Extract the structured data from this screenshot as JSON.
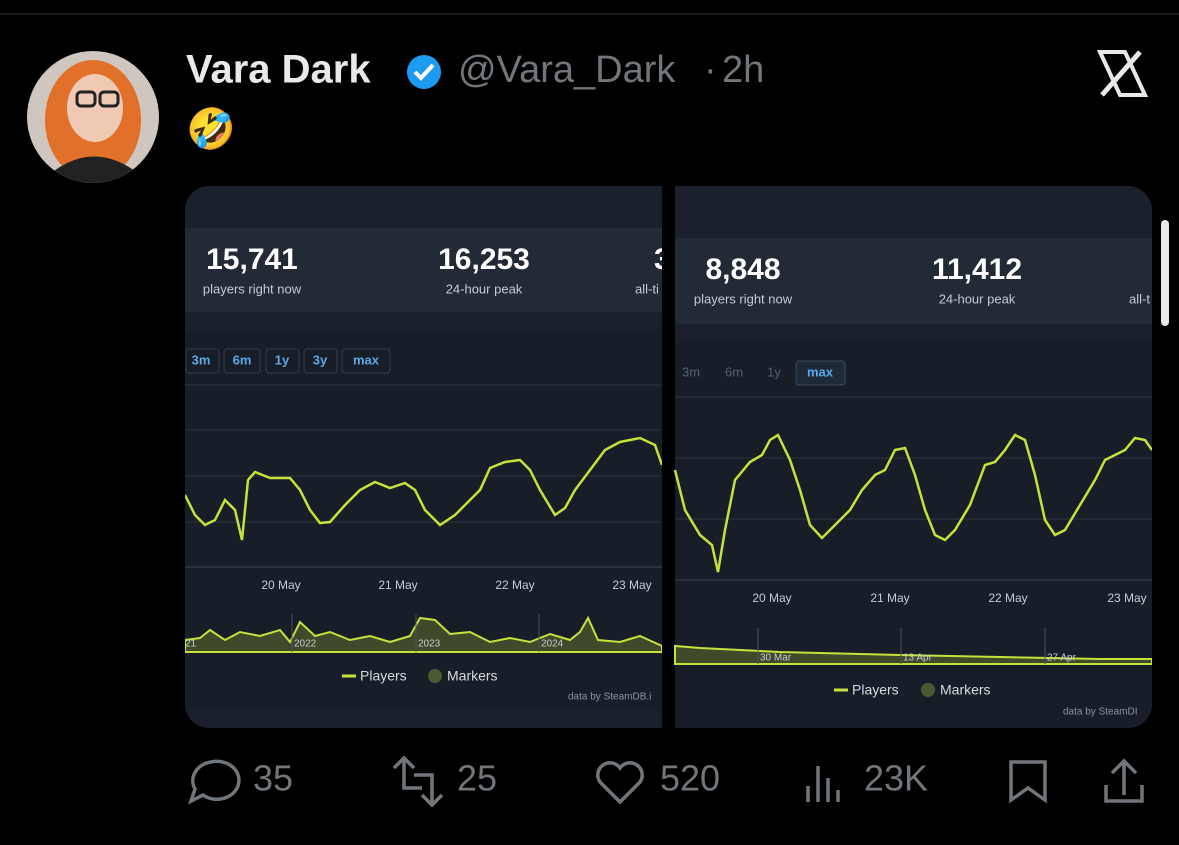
{
  "tweet": {
    "name": "Vara Dark",
    "handle": "@Vara_Dark",
    "separator": "·",
    "time": "2h",
    "text": "🤣"
  },
  "media": {
    "left": {
      "stats": [
        {
          "value": "15,741",
          "label": "players right now"
        },
        {
          "value": "16,253",
          "label": "24-hour peak"
        },
        {
          "value": "3",
          "label": "all-ti"
        }
      ],
      "ranges": [
        "3m",
        "6m",
        "1y",
        "3y",
        "max"
      ],
      "dates": [
        "20 May",
        "21 May",
        "22 May",
        "23 May"
      ],
      "navigator": [
        "21",
        "2022",
        "2023",
        "2024"
      ],
      "legend": [
        "Players",
        "Markers"
      ],
      "credit": "data by SteamDB.i"
    },
    "right": {
      "stats": [
        {
          "value": "8,848",
          "label": "players right now"
        },
        {
          "value": "11,412",
          "label": "24-hour peak"
        },
        {
          "label": "all-t"
        }
      ],
      "ranges": [
        "3m",
        "6m",
        "1y",
        "max"
      ],
      "dates": [
        "20 May",
        "21 May",
        "22 May",
        "23 May"
      ],
      "navigator": [
        "30 Mar",
        "13 Apr",
        "27 Apr"
      ],
      "legend": [
        "Players",
        "Markers"
      ],
      "credit": "data by SteamDI"
    }
  },
  "actions": {
    "replies": "35",
    "reposts": "25",
    "likes": "520",
    "views": "23K"
  }
}
